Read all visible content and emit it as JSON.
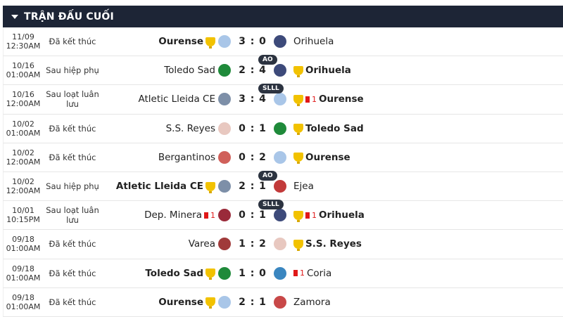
{
  "header": {
    "title": "TRẬN ĐẤU CUỐI"
  },
  "matches": [
    {
      "date": "11/09",
      "time": "12:30AM",
      "status": "Đã kết thúc",
      "home": {
        "name": "Ourense",
        "winner": true,
        "red": null,
        "color": "#a9c6e8"
      },
      "score": "3 : 0",
      "badge": null,
      "away": {
        "name": "Orihuela",
        "winner": false,
        "red": null,
        "color": "#3d4a7a"
      }
    },
    {
      "date": "10/16",
      "time": "01:00AM",
      "status": "Sau hiệp phụ",
      "home": {
        "name": "Toledo Sad",
        "winner": false,
        "red": null,
        "color": "#1f8a3a"
      },
      "score": "2 : 4",
      "badge": "AO",
      "away": {
        "name": "Orihuela",
        "winner": true,
        "red": null,
        "color": "#3d4a7a"
      }
    },
    {
      "date": "10/16",
      "time": "12:00AM",
      "status": "Sau loạt luân lưu",
      "home": {
        "name": "Atletic Lleida CE",
        "winner": false,
        "red": null,
        "color": "#7d8fa8"
      },
      "score": "3 : 4",
      "badge": "SLLL",
      "away": {
        "name": "Ourense",
        "winner": true,
        "red": "1",
        "color": "#a9c6e8"
      }
    },
    {
      "date": "10/02",
      "time": "01:00AM",
      "status": "Đã kết thúc",
      "home": {
        "name": "S.S. Reyes",
        "winner": false,
        "red": null,
        "color": "#e8c8c0"
      },
      "score": "0 : 1",
      "badge": null,
      "away": {
        "name": "Toledo Sad",
        "winner": true,
        "red": null,
        "color": "#1f8a3a"
      }
    },
    {
      "date": "10/02",
      "time": "12:00AM",
      "status": "Đã kết thúc",
      "home": {
        "name": "Bergantinos",
        "winner": false,
        "red": null,
        "color": "#d0605a"
      },
      "score": "0 : 2",
      "badge": null,
      "away": {
        "name": "Ourense",
        "winner": true,
        "red": null,
        "color": "#a9c6e8"
      }
    },
    {
      "date": "10/02",
      "time": "12:00AM",
      "status": "Sau hiệp phụ",
      "home": {
        "name": "Atletic Lleida CE",
        "winner": true,
        "red": null,
        "color": "#7d8fa8"
      },
      "score": "2 : 1",
      "badge": "AO",
      "away": {
        "name": "Ejea",
        "winner": false,
        "red": null,
        "color": "#c23a3a"
      }
    },
    {
      "date": "10/01",
      "time": "10:15PM",
      "status": "Sau loạt luân lưu",
      "home": {
        "name": "Dep. Minera",
        "winner": false,
        "red": "1",
        "color": "#9a2a3a"
      },
      "score": "0 : 1",
      "badge": "SLLL",
      "away": {
        "name": "Orihuela",
        "winner": true,
        "red": "1",
        "color": "#3d4a7a"
      }
    },
    {
      "date": "09/18",
      "time": "01:00AM",
      "status": "Đã kết thúc",
      "home": {
        "name": "Varea",
        "winner": false,
        "red": null,
        "color": "#a03a3a"
      },
      "score": "1 : 2",
      "badge": null,
      "away": {
        "name": "S.S. Reyes",
        "winner": true,
        "red": null,
        "color": "#e8c8c0"
      }
    },
    {
      "date": "09/18",
      "time": "01:00AM",
      "status": "Đã kết thúc",
      "home": {
        "name": "Toledo Sad",
        "winner": true,
        "red": null,
        "color": "#1f8a3a"
      },
      "score": "1 : 0",
      "badge": null,
      "away": {
        "name": "Coria",
        "winner": false,
        "red": "1",
        "color": "#3a86c0"
      }
    },
    {
      "date": "09/18",
      "time": "01:00AM",
      "status": "Đã kết thúc",
      "home": {
        "name": "Ourense",
        "winner": true,
        "red": null,
        "color": "#a9c6e8"
      },
      "score": "2 : 1",
      "badge": null,
      "away": {
        "name": "Zamora",
        "winner": false,
        "red": null,
        "color": "#c84848"
      }
    }
  ]
}
